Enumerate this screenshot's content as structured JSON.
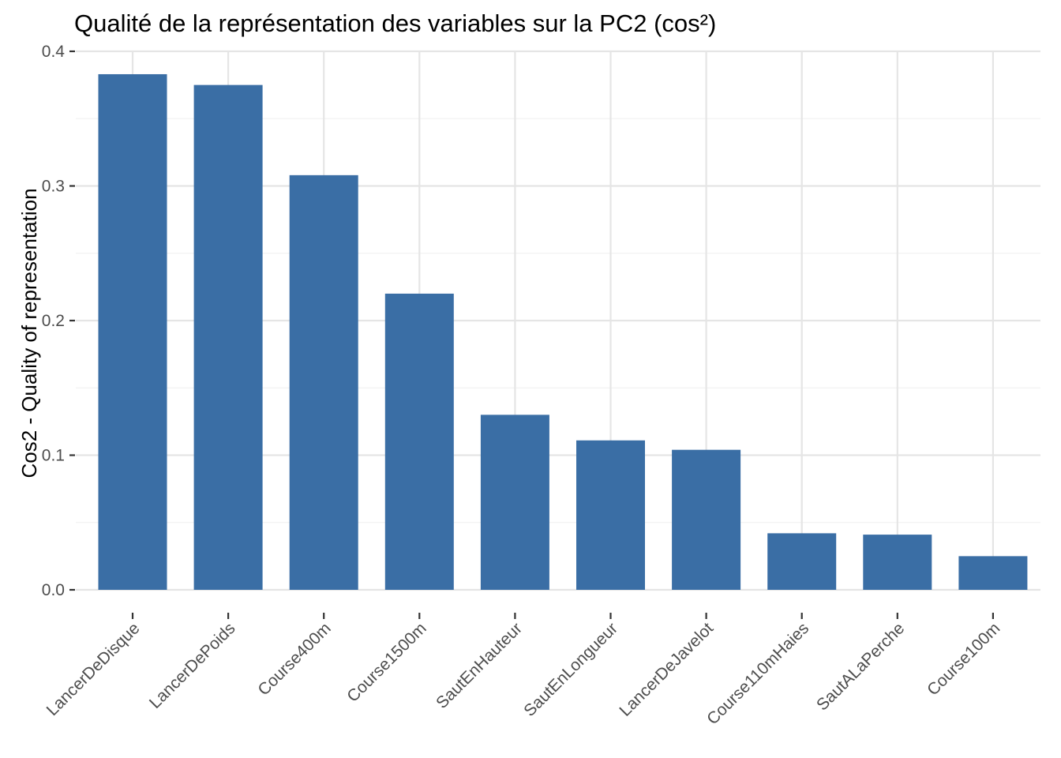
{
  "chart_data": {
    "type": "bar",
    "title": "Qualité de la représentation des variables sur la PC2 (cos²)",
    "xlabel": "",
    "ylabel": "Cos2 - Quality of representation",
    "categories": [
      "LancerDeDisque",
      "LancerDePoids",
      "Course400m",
      "Course1500m",
      "SautEnHauteur",
      "SautEnLongueur",
      "LancerDeJavelot",
      "Course110mHaies",
      "SautALaPerche",
      "Course100m"
    ],
    "values": [
      0.383,
      0.375,
      0.308,
      0.22,
      0.13,
      0.111,
      0.104,
      0.042,
      0.041,
      0.025
    ],
    "ylim": [
      0,
      0.4
    ],
    "yticks": [
      0.0,
      0.1,
      0.2,
      0.3,
      0.4
    ],
    "ytick_labels": [
      "0.0",
      "0.1",
      "0.2",
      "0.3",
      "0.4"
    ],
    "grid": true,
    "bar_color": "#3A6EA5"
  }
}
